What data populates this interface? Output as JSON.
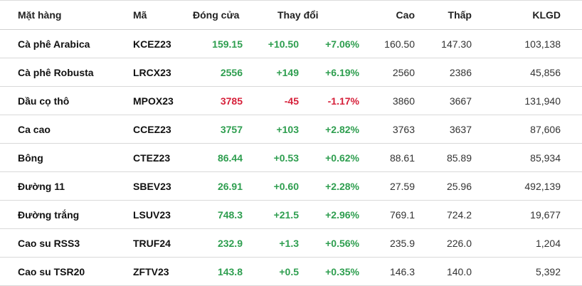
{
  "table": {
    "headers": {
      "name": "Mặt hàng",
      "code": "Mã",
      "close": "Đóng cửa",
      "change": "Thay đổi",
      "high": "Cao",
      "low": "Thấp",
      "volume": "KLGD"
    },
    "colors": {
      "up": "#2e9e4f",
      "down": "#d6203a"
    },
    "rows": [
      {
        "name": "Cà phê Arabica",
        "code": "KCEZ23",
        "close": "159.15",
        "change": "+10.50",
        "pct": "+7.06%",
        "high": "160.50",
        "low": "147.30",
        "volume": "103,138",
        "direction": "up"
      },
      {
        "name": "Cà phê Robusta",
        "code": "LRCX23",
        "close": "2556",
        "change": "+149",
        "pct": "+6.19%",
        "high": "2560",
        "low": "2386",
        "volume": "45,856",
        "direction": "up"
      },
      {
        "name": "Dầu cọ thô",
        "code": "MPOX23",
        "close": "3785",
        "change": "-45",
        "pct": "-1.17%",
        "high": "3860",
        "low": "3667",
        "volume": "131,940",
        "direction": "down"
      },
      {
        "name": "Ca cao",
        "code": "CCEZ23",
        "close": "3757",
        "change": "+103",
        "pct": "+2.82%",
        "high": "3763",
        "low": "3637",
        "volume": "87,606",
        "direction": "up"
      },
      {
        "name": "Bông",
        "code": "CTEZ23",
        "close": "86.44",
        "change": "+0.53",
        "pct": "+0.62%",
        "high": "88.61",
        "low": "85.89",
        "volume": "85,934",
        "direction": "up"
      },
      {
        "name": "Đường 11",
        "code": "SBEV23",
        "close": "26.91",
        "change": "+0.60",
        "pct": "+2.28%",
        "high": "27.59",
        "low": "25.96",
        "volume": "492,139",
        "direction": "up"
      },
      {
        "name": "Đường trắng",
        "code": "LSUV23",
        "close": "748.3",
        "change": "+21.5",
        "pct": "+2.96%",
        "high": "769.1",
        "low": "724.2",
        "volume": "19,677",
        "direction": "up"
      },
      {
        "name": "Cao su RSS3",
        "code": "TRUF24",
        "close": "232.9",
        "change": "+1.3",
        "pct": "+0.56%",
        "high": "235.9",
        "low": "226.0",
        "volume": "1,204",
        "direction": "up"
      },
      {
        "name": "Cao su TSR20",
        "code": "ZFTV23",
        "close": "143.8",
        "change": "+0.5",
        "pct": "+0.35%",
        "high": "146.3",
        "low": "140.0",
        "volume": "5,392",
        "direction": "up"
      }
    ]
  }
}
